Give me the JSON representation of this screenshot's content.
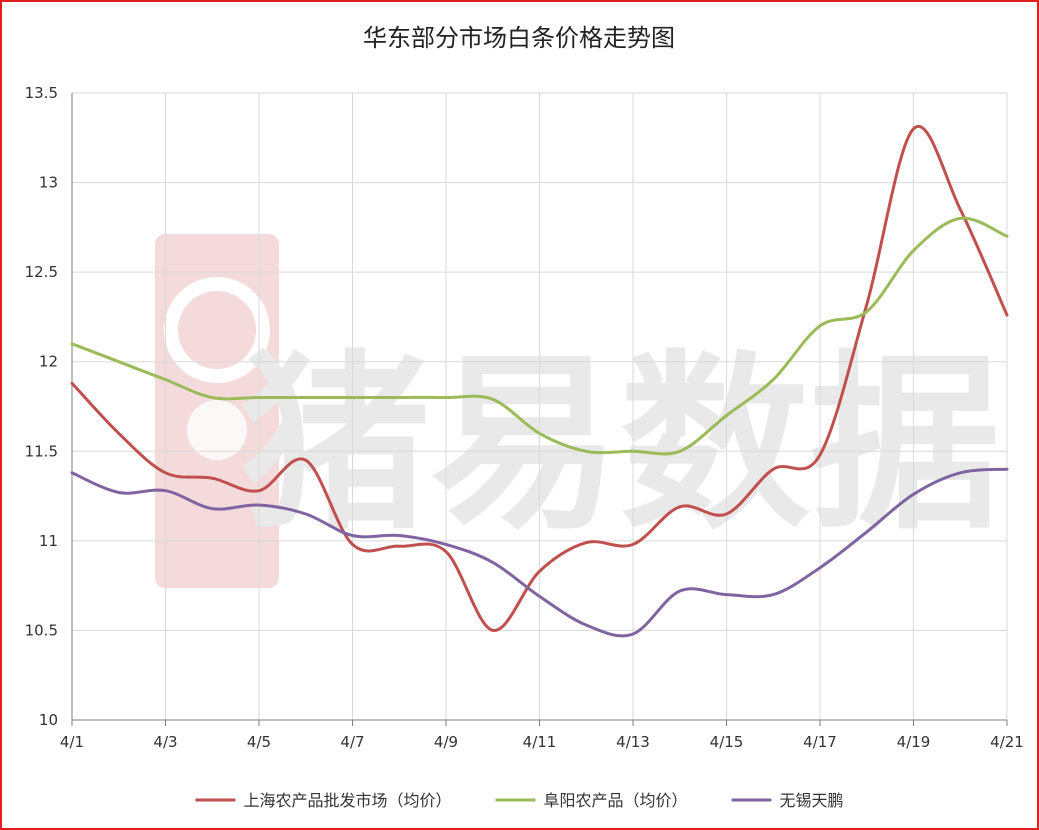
{
  "chart_data": {
    "type": "line",
    "title": "华东部分市场白条价格走势图",
    "xlabel": "",
    "ylabel": "",
    "ylim": [
      10,
      13.5
    ],
    "yticks": [
      "10",
      "10.5",
      "11",
      "11.5",
      "12",
      "12.5",
      "13",
      "13.5"
    ],
    "x": [
      "4/1",
      "4/2",
      "4/3",
      "4/4",
      "4/5",
      "4/6",
      "4/7",
      "4/8",
      "4/9",
      "4/10",
      "4/11",
      "4/12",
      "4/13",
      "4/14",
      "4/15",
      "4/16",
      "4/17",
      "4/18",
      "4/19",
      "4/20",
      "4/21"
    ],
    "xtick_labels": [
      "4/1",
      "4/3",
      "4/5",
      "4/7",
      "4/9",
      "4/11",
      "4/13",
      "4/15",
      "4/17",
      "4/19",
      "4/21"
    ],
    "grid": true,
    "legend_position": "bottom",
    "series": [
      {
        "name": "上海农产品批发市场（均价）",
        "color": "#c0504d",
        "values": [
          11.88,
          11.6,
          11.38,
          11.35,
          11.28,
          11.45,
          10.98,
          10.97,
          10.94,
          10.5,
          10.83,
          10.99,
          10.98,
          11.19,
          11.15,
          11.4,
          11.48,
          12.32,
          13.3,
          12.85,
          12.26
        ]
      },
      {
        "name": "阜阳农产品（均价）",
        "color": "#9bbb59",
        "values": [
          12.1,
          12.0,
          11.9,
          11.8,
          11.8,
          11.8,
          11.8,
          11.8,
          11.8,
          11.79,
          11.6,
          11.5,
          11.5,
          11.5,
          11.7,
          11.9,
          12.2,
          12.28,
          12.62,
          12.8,
          12.7
        ]
      },
      {
        "name": "无锡天鹏",
        "color": "#8064a2",
        "values": [
          11.38,
          11.27,
          11.28,
          11.18,
          11.2,
          11.15,
          11.03,
          11.03,
          10.98,
          10.88,
          10.69,
          10.53,
          10.48,
          10.72,
          10.7,
          10.7,
          10.85,
          11.05,
          11.26,
          11.38,
          11.4
        ]
      }
    ],
    "watermark": "猪易数据",
    "colors": {
      "border": "#e02020",
      "grid": "#d9d9d9",
      "axis": "#7f7f7f",
      "watermark_logo": "#f2d4d4",
      "watermark_text": "#e8e8e8"
    }
  }
}
